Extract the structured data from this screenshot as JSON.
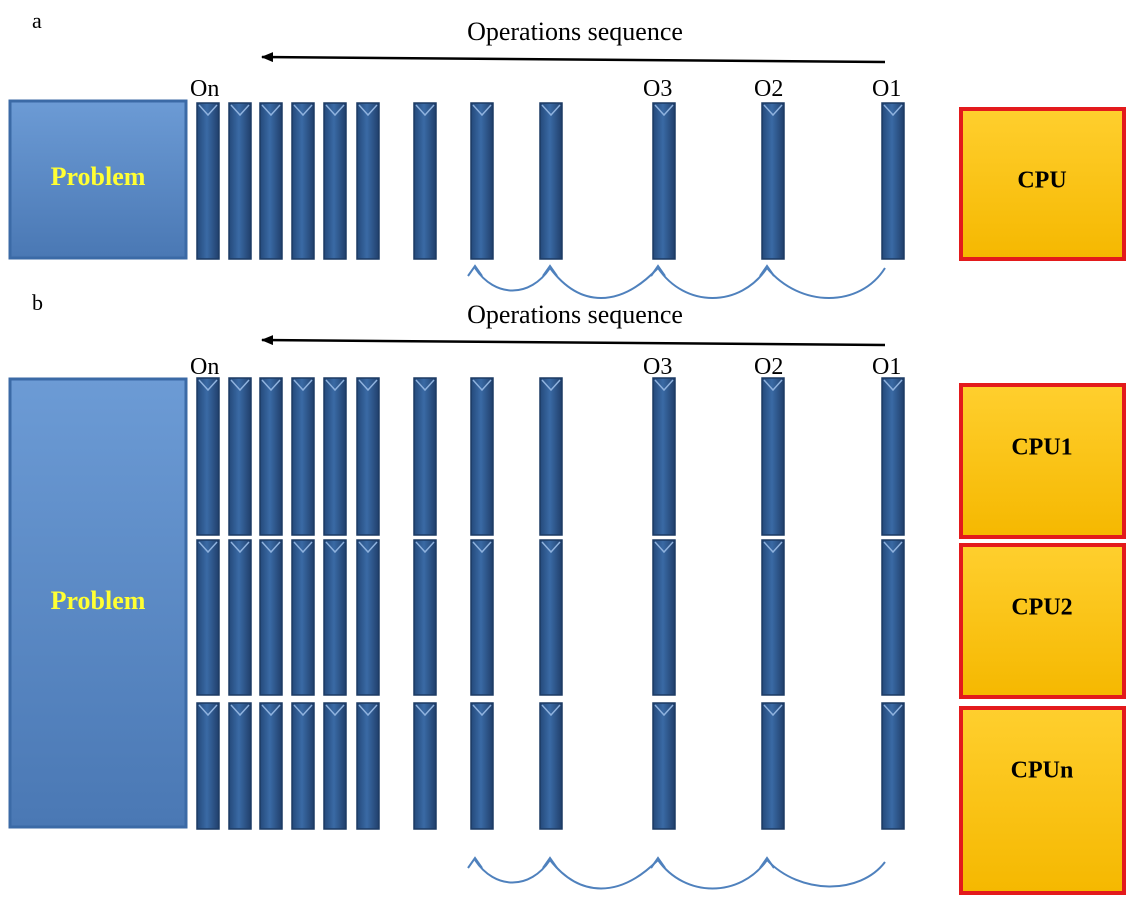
{
  "panel_a": {
    "label": "a",
    "sequence_label": "Operations sequence",
    "operation_labels": [
      "On",
      "O3",
      "O2",
      "O1"
    ],
    "problem_label": "Problem",
    "cpu_labels": [
      "CPU"
    ]
  },
  "panel_b": {
    "label": "b",
    "sequence_label": "Operations sequence",
    "operation_labels": [
      "On",
      "O3",
      "O2",
      "O1"
    ],
    "problem_label": "Problem",
    "cpu_labels": [
      "CPU1",
      "CPU2",
      "CPUn"
    ]
  },
  "colors": {
    "problem_fill": "#5a8ac6",
    "problem_text": "#ffff33",
    "bar_fill": "#2f5a8e",
    "cpu_fill": "#ffc20e",
    "cpu_border": "#e31a1c",
    "arc_stroke": "#4f81bd",
    "arrow_stroke": "#000000"
  }
}
